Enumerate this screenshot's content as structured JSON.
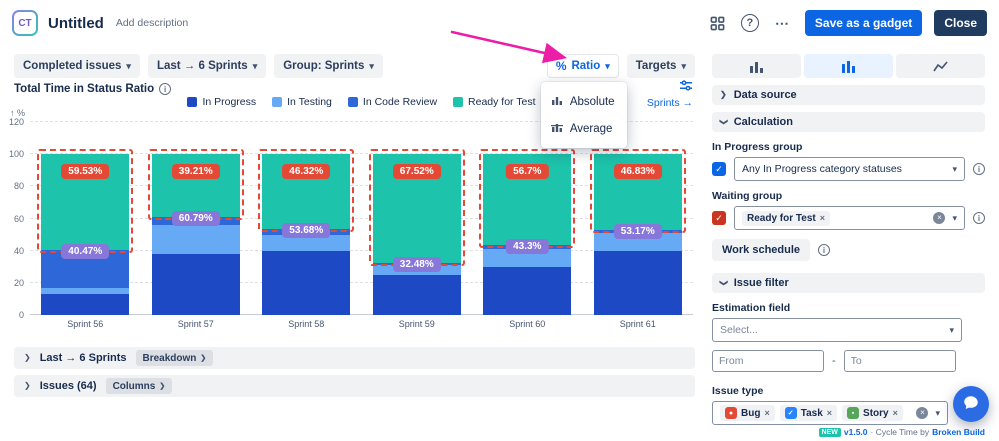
{
  "annotation": {
    "arrow_color": "#EB1EA8"
  },
  "colors": {
    "primary_button": "#0C66E4",
    "close_button": "#203B60"
  },
  "icons": {
    "chevron_down": "▾",
    "chevron_right": "❯",
    "close_x": "×",
    "more": "⋯",
    "help": "?",
    "info": "i",
    "check": "✓",
    "percent": "%",
    "y_axis_unit": "↑ %"
  },
  "header": {
    "logo": "CT",
    "title": "Untitled",
    "add_description": "Add description",
    "save_button": "Save as a gadget",
    "close_button": "Close"
  },
  "toolbar": {
    "completed_issues": "Completed issues",
    "range": "Last → 6 Sprints",
    "group": "Group: Sprints",
    "ratio": "Ratio",
    "targets": "Targets",
    "ratio_menu": [
      {
        "label": "Absolute"
      },
      {
        "label": "Average"
      }
    ]
  },
  "chart_header": {
    "title": "Total Time in Status Ratio",
    "sprints_link": "Sprints →"
  },
  "chart_data": {
    "type": "bar",
    "stacked": true,
    "title": "Total Time in Status Ratio",
    "ylabel": "%",
    "ylim": [
      0,
      120
    ],
    "yticks": [
      0,
      20,
      40,
      60,
      80,
      100,
      120
    ],
    "grid": true,
    "legend_position": "top",
    "categories": [
      "Sprint 56",
      "Sprint 57",
      "Sprint 58",
      "Sprint 59",
      "Sprint 60",
      "Sprint 61"
    ],
    "series": [
      {
        "name": "In Progress",
        "color": "#1D49C4",
        "values": [
          13,
          38,
          40,
          25,
          30,
          40
        ]
      },
      {
        "name": "In Testing",
        "color": "#66A9F4",
        "values": [
          4,
          18,
          10,
          6,
          11,
          11
        ]
      },
      {
        "name": "In Code Review",
        "color": "#2E67D8",
        "values": [
          23.47,
          4.79,
          3.68,
          1.48,
          2.3,
          2.17
        ]
      },
      {
        "name": "Ready for Test",
        "color": "#1DC3AA",
        "values": [
          59.53,
          39.21,
          46.32,
          67.52,
          56.7,
          46.83
        ]
      }
    ],
    "waiting_ratio_labels": [
      "59.53%",
      "39.21%",
      "46.32%",
      "67.52%",
      "56.7%",
      "46.83%"
    ],
    "progress_ratio_labels": [
      "40.47%",
      "60.79%",
      "53.68%",
      "32.48%",
      "43.3%",
      "53.17%"
    ],
    "colors": {
      "waiting_badge": "#E34935",
      "progress_badge": "#8777D9",
      "waiting_outline": "#E34935"
    }
  },
  "panels": {
    "breakdown": {
      "title": "Last → 6 Sprints",
      "chip": "Breakdown"
    },
    "issues": {
      "title": "Issues (64)",
      "chip": "Columns"
    }
  },
  "sidebar": {
    "sections": {
      "data_source": "Data source",
      "calculation": "Calculation",
      "issue_filter": "Issue filter"
    },
    "calculation": {
      "in_progress_label": "In Progress group",
      "in_progress_value": "Any In Progress category statuses",
      "in_progress_checkbox_color": "#0C66E4",
      "waiting_label": "Waiting group",
      "waiting_tag": "Ready for Test",
      "waiting_checkbox_color": "#CA3521",
      "work_schedule_button": "Work schedule"
    },
    "issue_filter": {
      "estimation_label": "Estimation field",
      "estimation_placeholder": "Select...",
      "from_placeholder": "From",
      "range_separator": "-",
      "to_placeholder": "To",
      "issue_type_label": "Issue type",
      "issue_types": [
        {
          "label": "Bug",
          "color": "#E34935",
          "glyph": "●"
        },
        {
          "label": "Task",
          "color": "#2684FF",
          "glyph": "✓"
        },
        {
          "label": "Story",
          "color": "#57A55A",
          "glyph": "▪"
        }
      ]
    },
    "footer": {
      "badge": "NEW",
      "version": "v1.5.0",
      "text": "· Cycle Time by",
      "brand": "Broken Build"
    }
  }
}
